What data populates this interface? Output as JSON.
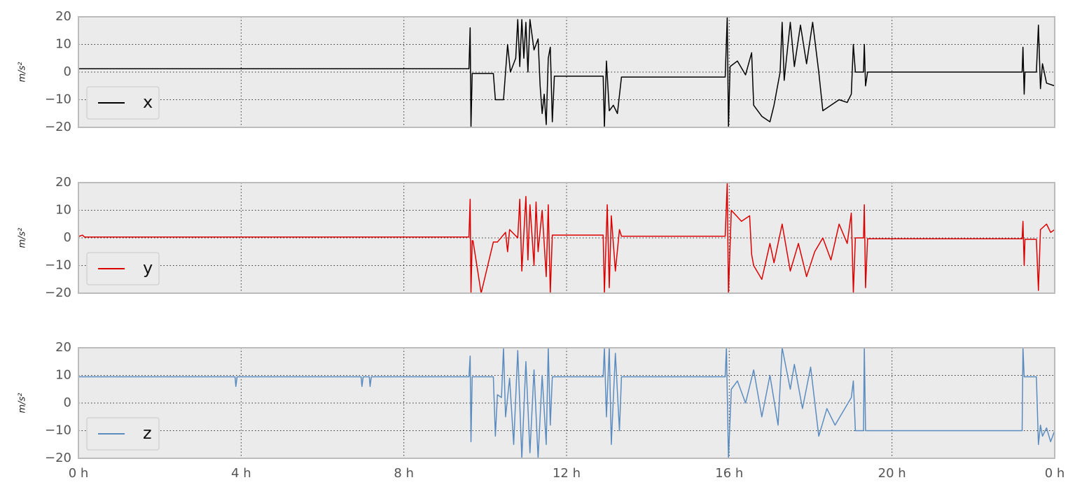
{
  "chart_data": [
    {
      "type": "line",
      "ylabel": "m/s²",
      "grid": true,
      "legend": "lower left",
      "xlim": [
        0,
        24
      ],
      "xticks": [
        0,
        4,
        8,
        12,
        16,
        20,
        24
      ],
      "ylim": [
        -20,
        20
      ],
      "yticks": [
        {
          "value": -20,
          "label": "−20"
        },
        {
          "value": -10,
          "label": "−10"
        },
        0,
        10,
        20
      ],
      "x": [
        0,
        9.6,
        9.63,
        9.65,
        9.68,
        10.2,
        10.25,
        10.45,
        10.55,
        10.62,
        10.75,
        10.8,
        10.85,
        10.9,
        10.95,
        11.0,
        11.05,
        11.1,
        11.2,
        11.3,
        11.35,
        11.4,
        11.45,
        11.5,
        11.55,
        11.6,
        11.65,
        11.7,
        12.9,
        12.93,
        12.98,
        13.05,
        13.15,
        13.25,
        13.35,
        15.9,
        15.95,
        15.98,
        16.02,
        16.2,
        16.4,
        16.55,
        16.6,
        16.8,
        17.0,
        17.1,
        17.25,
        17.3,
        17.35,
        17.5,
        17.6,
        17.75,
        17.9,
        18.05,
        18.2,
        18.3,
        18.5,
        18.7,
        18.9,
        19.0,
        19.05,
        19.1,
        19.3,
        19.32,
        19.35,
        19.4,
        23.2,
        23.22,
        23.25,
        23.27,
        23.55,
        23.6,
        23.65,
        23.7,
        23.8,
        24
      ],
      "series": [
        {
          "name": "x",
          "color": "#000000",
          "values": [
            1.2,
            1.2,
            16,
            -20,
            -0.5,
            -0.5,
            -10,
            -10,
            10,
            0,
            5,
            19,
            2,
            19,
            5,
            18,
            0,
            19,
            8,
            12,
            -5,
            -15,
            -8,
            -19,
            5,
            9,
            -18,
            -1.5,
            -1.5,
            -20,
            4,
            -14,
            -12,
            -15,
            -1.8,
            -1.8,
            20,
            -20,
            2,
            4,
            -1,
            7,
            -12,
            -16,
            -18,
            -12,
            0,
            18,
            -3,
            18,
            2,
            17,
            3,
            18,
            0,
            -14,
            -12,
            -10,
            -11,
            -8,
            10,
            0,
            0,
            10,
            -5,
            0,
            0,
            9,
            -8,
            0,
            0,
            17,
            -6,
            3,
            -4,
            -5
          ]
        }
      ]
    },
    {
      "type": "line",
      "ylabel": "m/s²",
      "grid": true,
      "legend": "lower left",
      "xlim": [
        0,
        24
      ],
      "xticks": [
        0,
        4,
        8,
        12,
        16,
        20,
        24
      ],
      "ylim": [
        -20,
        20
      ],
      "yticks": [
        {
          "value": -20,
          "label": "−20"
        },
        {
          "value": -10,
          "label": "−10"
        },
        0,
        10,
        20
      ],
      "x": [
        0,
        0.1,
        0.15,
        9.6,
        9.63,
        9.65,
        9.68,
        9.7,
        9.9,
        10.2,
        10.3,
        10.5,
        10.55,
        10.6,
        10.8,
        10.85,
        10.9,
        11.0,
        11.05,
        11.1,
        11.2,
        11.25,
        11.3,
        11.4,
        11.5,
        11.55,
        11.6,
        11.65,
        12.9,
        12.93,
        13.0,
        13.05,
        13.1,
        13.2,
        13.3,
        13.35,
        15.9,
        15.95,
        15.98,
        16.05,
        16.3,
        16.5,
        16.55,
        16.6,
        16.8,
        17.0,
        17.1,
        17.3,
        17.5,
        17.7,
        17.9,
        18.1,
        18.3,
        18.5,
        18.7,
        18.9,
        19.0,
        19.05,
        19.1,
        19.3,
        19.32,
        19.35,
        19.4,
        23.2,
        23.22,
        23.25,
        23.27,
        23.55,
        23.6,
        23.65,
        23.8,
        23.9,
        24
      ],
      "series": [
        {
          "name": "y",
          "color": "#dd0000",
          "values": [
            0.5,
            1,
            0.3,
            0.3,
            14,
            -20,
            -1,
            -1,
            -20,
            -1.5,
            -1.5,
            2,
            -5,
            3,
            0,
            14,
            -12,
            15,
            -8,
            12,
            -10,
            13,
            -5,
            10,
            -14,
            12,
            -20,
            1,
            1,
            -20,
            12,
            -18,
            8,
            -12,
            3,
            0.6,
            0.6,
            20,
            -20,
            10,
            6,
            8,
            -6,
            -10,
            -15,
            -2,
            -9,
            5,
            -12,
            -2,
            -14,
            -5,
            0,
            -8,
            5,
            -2,
            9,
            -20,
            0,
            0,
            12,
            -18,
            -0.3,
            -0.3,
            6,
            -10,
            -0.5,
            -0.5,
            -19,
            3,
            5,
            2,
            3
          ]
        }
      ]
    },
    {
      "type": "line",
      "ylabel": "m/s²",
      "grid": true,
      "legend": "lower left",
      "xlim": [
        0,
        24
      ],
      "xticks": [
        {
          "value": 0,
          "label": "0 h"
        },
        {
          "value": 4,
          "label": "4 h"
        },
        {
          "value": 8,
          "label": "8 h"
        },
        {
          "value": 12,
          "label": "12 h"
        },
        {
          "value": 16,
          "label": "16 h"
        },
        {
          "value": 20,
          "label": "20 h"
        },
        {
          "value": 24,
          "label": "0 h"
        }
      ],
      "ylim": [
        -20,
        20
      ],
      "yticks": [
        {
          "value": -20,
          "label": "−20"
        },
        {
          "value": -10,
          "label": "−10"
        },
        0,
        10,
        20
      ],
      "x": [
        0,
        3.85,
        3.87,
        3.9,
        6.95,
        6.97,
        7.0,
        7.15,
        7.17,
        7.2,
        9.6,
        9.63,
        9.65,
        9.68,
        10.0,
        10.2,
        10.25,
        10.3,
        10.4,
        10.45,
        10.5,
        10.6,
        10.7,
        10.8,
        10.9,
        11.0,
        11.1,
        11.2,
        11.3,
        11.4,
        11.5,
        11.55,
        11.6,
        11.65,
        12.9,
        12.93,
        12.98,
        13.05,
        13.1,
        13.2,
        13.3,
        13.35,
        15.9,
        15.93,
        15.98,
        16.05,
        16.2,
        16.4,
        16.6,
        16.8,
        17.0,
        17.2,
        17.3,
        17.5,
        17.6,
        17.8,
        18.0,
        18.2,
        18.4,
        18.6,
        18.8,
        19.0,
        19.05,
        19.1,
        19.3,
        19.32,
        19.35,
        23.2,
        23.22,
        23.25,
        23.55,
        23.6,
        23.65,
        23.7,
        23.8,
        23.9,
        24
      ],
      "series": [
        {
          "name": "z",
          "color": "#5b8cc0",
          "values": [
            9.5,
            9.5,
            6,
            9.5,
            9.5,
            6,
            9.5,
            9.5,
            6,
            9.5,
            9.5,
            17,
            -14,
            9.5,
            9.5,
            9.5,
            -12,
            3,
            2,
            20,
            -5,
            9,
            -15,
            19,
            -20,
            15,
            -18,
            12,
            -20,
            10,
            -15,
            20,
            -8,
            9.5,
            9.5,
            20,
            -5,
            20,
            -15,
            18,
            -10,
            9.5,
            9.5,
            20,
            -20,
            5,
            8,
            0,
            12,
            -5,
            10,
            -8,
            20,
            5,
            14,
            -2,
            13,
            -12,
            -2,
            -8,
            -3,
            2,
            8,
            -10,
            -10,
            20,
            -10,
            -10,
            20,
            9.5,
            9.5,
            -15,
            -8,
            -12,
            -9,
            -14,
            -10
          ]
        }
      ]
    }
  ]
}
